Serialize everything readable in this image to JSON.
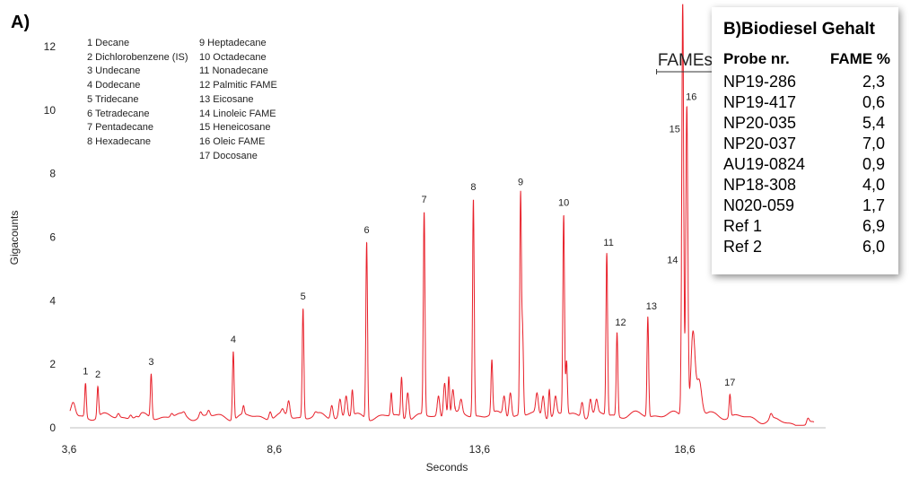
{
  "panel_label": "A)",
  "legend_left": [
    "1 Decane",
    "2 Dichlorobenzene (IS)",
    "3 Undecane",
    "4 Dodecane",
    "5 Tridecane",
    "6 Tetradecane",
    "7 Pentadecane",
    "8 Hexadecane"
  ],
  "legend_right": [
    "9 Heptadecane",
    "10 Octadecane",
    "11 Nonadecane",
    "12 Palmitic FAME",
    "13 Eicosane",
    "14 Linoleic FAME",
    "15 Heneicosane",
    "16 Oleic FAME",
    "17 Docosane"
  ],
  "table": {
    "title": "B)Biodiesel Gehalt",
    "col1": "Probe nr.",
    "col2": "FAME %",
    "rows": [
      {
        "probe": "NP19-286",
        "fame": "2,3"
      },
      {
        "probe": "NP19-417",
        "fame": "0,6"
      },
      {
        "probe": "NP20-035",
        "fame": "5,4"
      },
      {
        "probe": "NP20-037",
        "fame": "7,0"
      },
      {
        "probe": "AU19-0824",
        "fame": "0,9"
      },
      {
        "probe": "NP18-308",
        "fame": "4,0"
      },
      {
        "probe": "N020-059",
        "fame": "1,7"
      },
      {
        "probe": "Ref 1",
        "fame": "6,9"
      },
      {
        "probe": "Ref 2",
        "fame": "6,0"
      }
    ]
  },
  "chart_data": {
    "type": "line",
    "xlabel": "Seconds",
    "ylabel": "Gigacounts",
    "xlim": [
      3.6,
      21.8
    ],
    "ylim": [
      0,
      12
    ],
    "x_ticks": [
      "3,6",
      "8,6",
      "13,6",
      "18,6"
    ],
    "x_tick_values": [
      3.6,
      8.6,
      13.6,
      18.6
    ],
    "y_ticks": [
      "0",
      "2",
      "4",
      "6",
      "8",
      "10",
      "12"
    ],
    "y_tick_values": [
      0,
      2,
      4,
      6,
      8,
      10,
      12
    ],
    "grid": false,
    "line_color": "#e8202a",
    "fames_label": "FAMEs",
    "fames_range": [
      18.0,
      19.7
    ],
    "peaks": [
      {
        "label": "1",
        "x": 4.0,
        "y": 1.4
      },
      {
        "label": "2",
        "x": 4.3,
        "y": 1.3
      },
      {
        "label": "3",
        "x": 5.6,
        "y": 1.7
      },
      {
        "label": "4",
        "x": 7.6,
        "y": 2.4
      },
      {
        "label": "5",
        "x": 9.3,
        "y": 3.75
      },
      {
        "label": "6",
        "x": 10.85,
        "y": 5.85
      },
      {
        "label": "7",
        "x": 12.25,
        "y": 6.8
      },
      {
        "label": "8",
        "x": 13.45,
        "y": 7.2
      },
      {
        "label": "9",
        "x": 14.6,
        "y": 7.35
      },
      {
        "label": "10",
        "x": 15.65,
        "y": 6.7
      },
      {
        "label": "11",
        "x": 16.7,
        "y": 5.5
      },
      {
        "label": "12",
        "x": 16.95,
        "y": 3.0
      },
      {
        "label": "13",
        "x": 17.7,
        "y": 3.5
      },
      {
        "label": "14",
        "x": 18.5,
        "y": 4.9
      },
      {
        "label": "15",
        "x": 18.55,
        "y": 8.8
      },
      {
        "label": "16",
        "x": 18.65,
        "y": 10.1
      },
      {
        "label": "17",
        "x": 19.7,
        "y": 1.05
      }
    ]
  }
}
